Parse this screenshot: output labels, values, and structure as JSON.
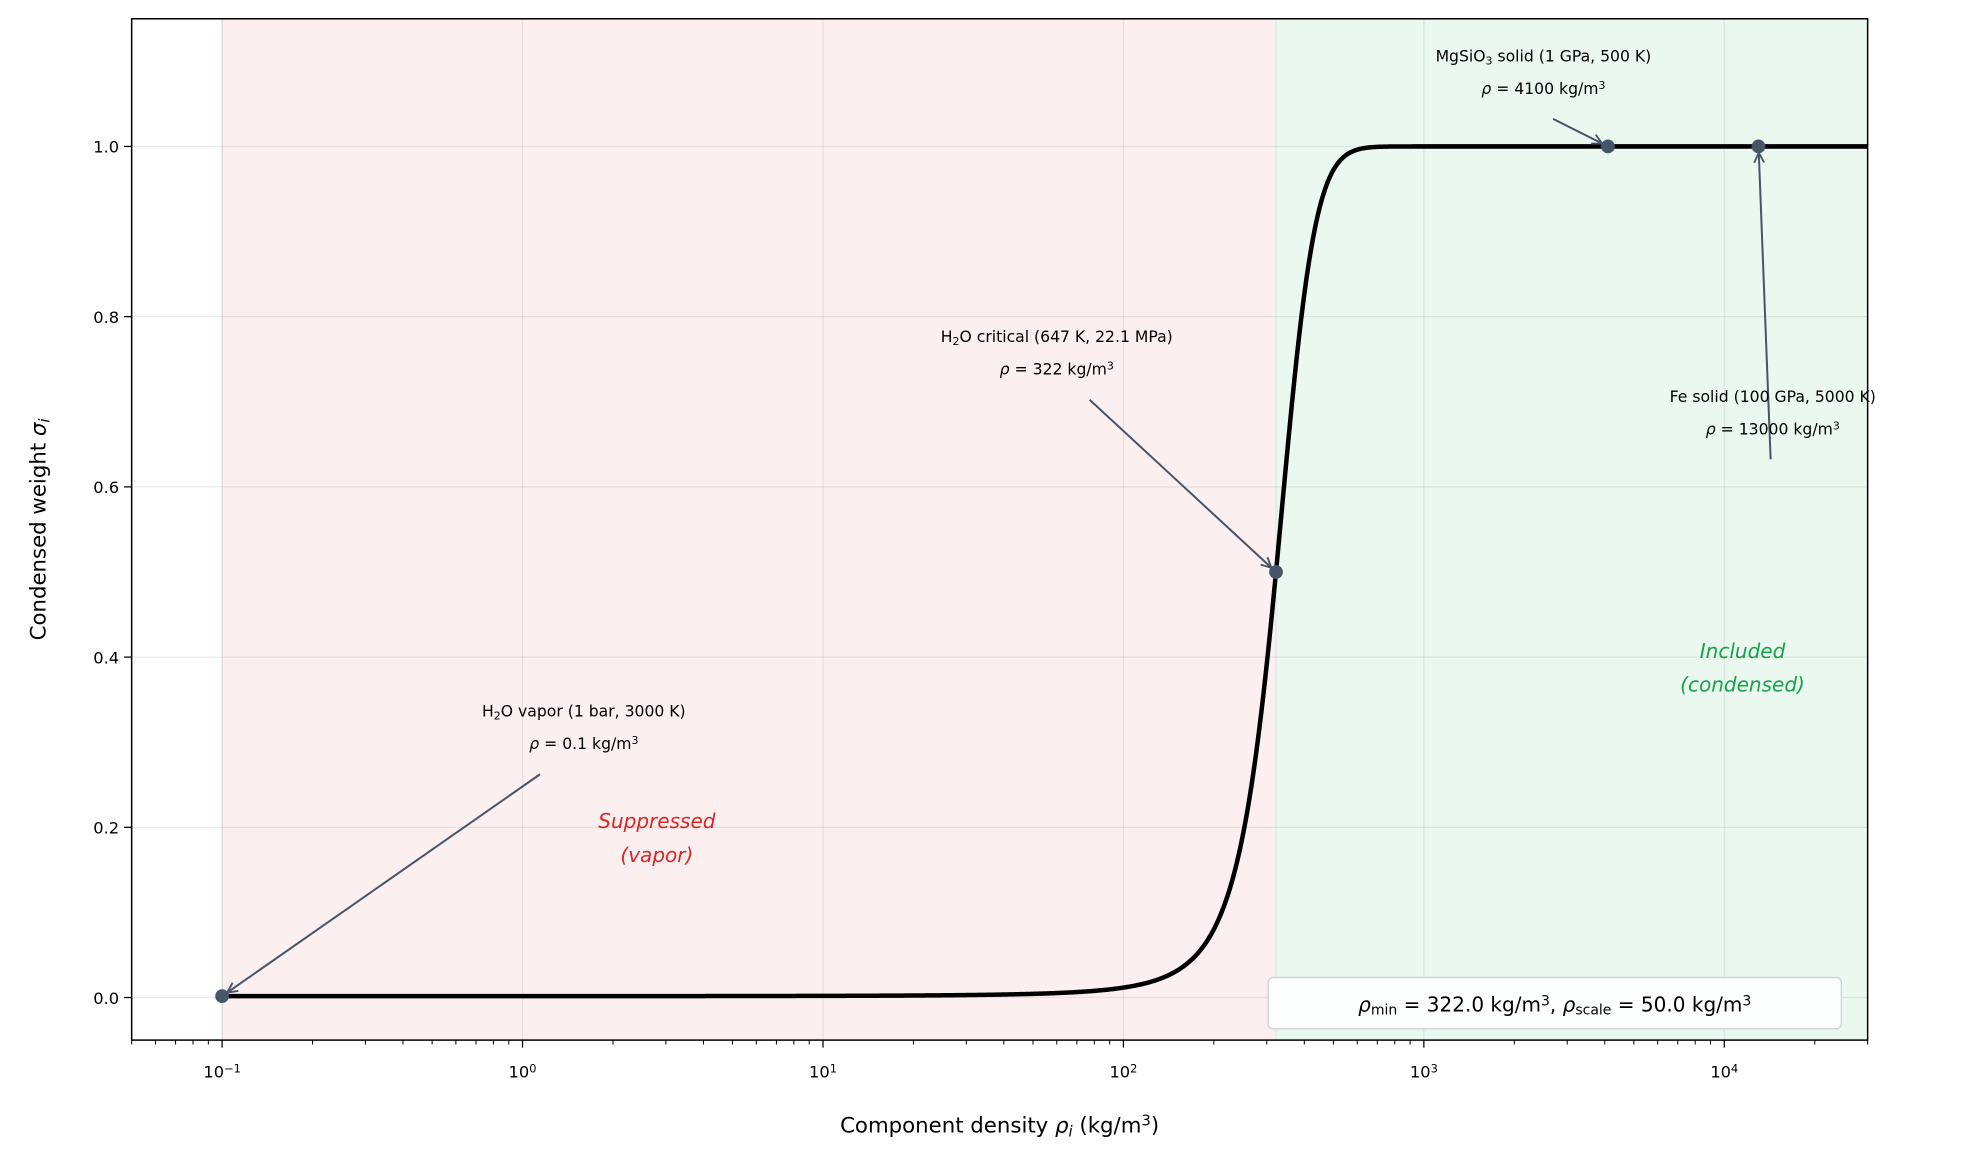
{
  "chart_data": {
    "type": "line",
    "title": "",
    "xlabel_parts": [
      {
        "t": "Component density "
      },
      {
        "t": "ρ",
        "it": true
      },
      {
        "t": "i",
        "sub": true,
        "it": true
      },
      {
        "t": " (kg/m"
      },
      {
        "t": "3",
        "sup": true
      },
      {
        "t": ")"
      }
    ],
    "ylabel_parts": [
      {
        "t": "Condensed weight "
      },
      {
        "t": "σ",
        "it": true
      },
      {
        "t": "i",
        "sub": true,
        "it": true
      }
    ],
    "x_scale": "log",
    "xlim": [
      0.05,
      30000
    ],
    "ylim": [
      -0.05,
      1.15
    ],
    "grid": true,
    "x_ticks": [
      {
        "v": 0.1,
        "base": "10",
        "exp": "−1"
      },
      {
        "v": 1,
        "base": "10",
        "exp": "0"
      },
      {
        "v": 10,
        "base": "10",
        "exp": "1"
      },
      {
        "v": 100,
        "base": "10",
        "exp": "2"
      },
      {
        "v": 1000,
        "base": "10",
        "exp": "3"
      },
      {
        "v": 10000,
        "base": "10",
        "exp": "4"
      }
    ],
    "y_ticks": [
      {
        "v": 0,
        "label": "0.0"
      },
      {
        "v": 0.2,
        "label": "0.2"
      },
      {
        "v": 0.4,
        "label": "0.4"
      },
      {
        "v": 0.6,
        "label": "0.6"
      },
      {
        "v": 0.8,
        "label": "0.8"
      },
      {
        "v": 1.0,
        "label": "1.0"
      }
    ],
    "curve": {
      "function": "sigmoid",
      "rho_min": 322.0,
      "rho_scale": 50.0,
      "x_range": [
        0.1,
        30000
      ],
      "color": "#000000"
    },
    "regions": [
      {
        "name": "suppressed",
        "x_range": [
          0.1,
          322
        ],
        "color": "#fcefef",
        "label_lines": [
          "Suppressed",
          "(vapor)"
        ],
        "label_color": "#dc2626",
        "label_at": [
          2.8,
          0.18
        ]
      },
      {
        "name": "included",
        "x_range": [
          322,
          30000
        ],
        "color": "#ebf8f0",
        "label_lines": [
          "Included",
          "(condensed)"
        ],
        "label_color": "#16a34a",
        "label_at": [
          11500,
          0.38
        ]
      }
    ],
    "points": [
      {
        "x": 0.1,
        "y": 0.0016,
        "lines": [
          [
            {
              "t": "H"
            },
            {
              "t": "2",
              "sub": true
            },
            {
              "t": "O vapor (1 bar, 3000 K)"
            }
          ],
          [
            {
              "t": "ρ",
              "it": true
            },
            {
              "t": " = 0.1 kg/m"
            },
            {
              "t": "3",
              "sup": true
            }
          ]
        ],
        "text_at": [
          1.6,
          0.33
        ]
      },
      {
        "x": 322,
        "y": 0.5,
        "lines": [
          [
            {
              "t": "H"
            },
            {
              "t": "2",
              "sub": true
            },
            {
              "t": "O critical (647 K, 22.1 MPa)"
            }
          ],
          [
            {
              "t": "ρ",
              "it": true
            },
            {
              "t": " = 322 kg/m"
            },
            {
              "t": "3",
              "sup": true
            }
          ]
        ],
        "text_at": [
          60,
          0.77
        ]
      },
      {
        "x": 4100,
        "y": 1.0,
        "lines": [
          [
            {
              "t": "MgSiO"
            },
            {
              "t": "3",
              "sub": true
            },
            {
              "t": " solid (1 GPa, 500 K)"
            }
          ],
          [
            {
              "t": "ρ",
              "it": true
            },
            {
              "t": " = 4100 kg/m"
            },
            {
              "t": "3",
              "sup": true
            }
          ]
        ],
        "text_at": [
          2500,
          1.1
        ]
      },
      {
        "x": 13000,
        "y": 1.0,
        "lines": [
          [
            {
              "t": "Fe solid (100 GPa, 5000 K)"
            }
          ],
          [
            {
              "t": "ρ",
              "it": true
            },
            {
              "t": " = 13000 kg/m"
            },
            {
              "t": "3",
              "sup": true
            }
          ]
        ],
        "text_at": [
          14500,
          0.7
        ]
      }
    ],
    "point_color": "#475569",
    "legend_box_parts": [
      {
        "t": "ρ",
        "it": true
      },
      {
        "t": "min",
        "sub": true
      },
      {
        "t": " = 322.0 kg/m"
      },
      {
        "t": "3",
        "sup": true
      },
      {
        "t": ",  "
      },
      {
        "t": "ρ",
        "it": true
      },
      {
        "t": "scale",
        "sub": true
      },
      {
        "t": " = 50.0 kg/m"
      },
      {
        "t": "3",
        "sup": true
      }
    ],
    "legend_placement": "bottom-right"
  }
}
